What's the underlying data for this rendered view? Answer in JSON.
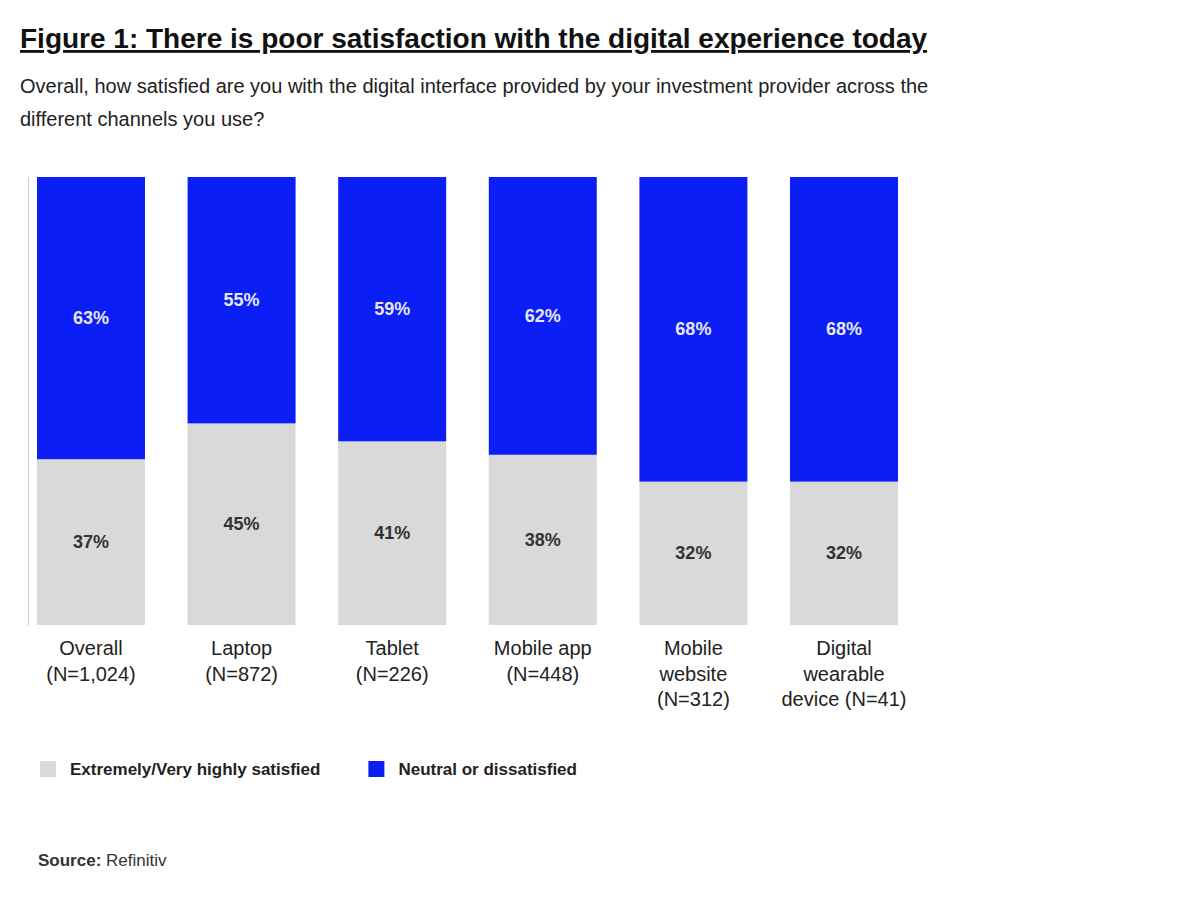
{
  "chart_data": {
    "type": "bar",
    "stacked": true,
    "data_labels": true,
    "tick_labels": "x",
    "title": "Figure 1: There is poor satisfaction with the digital experience today",
    "subtitle": "Overall, how satisfied are you with the digital interface provided by your investment provider across the\ndifferent channels you use?",
    "categories": [
      "Overall\n(N=1,024)",
      "Laptop\n(N=872)",
      "Tablet\n(N=226)",
      "Mobile app\n(N=448)",
      "Mobile\nwebsite\n(N=312)",
      "Digital\nwearable\ndevice (N=41)"
    ],
    "series": [
      {
        "name": "Extremely/Very highly satisfied",
        "color": "#d9d9d9",
        "values": [
          37,
          45,
          41,
          38,
          32,
          32
        ],
        "value_labels": [
          "37%",
          "45%",
          "41%",
          "38%",
          "32%",
          "32%"
        ]
      },
      {
        "name": "Neutral or dissatisfied",
        "color": "#0a1ef5",
        "values": [
          63,
          55,
          59,
          62,
          68,
          68
        ],
        "value_labels": [
          "63%",
          "55%",
          "59%",
          "62%",
          "68%",
          "68%"
        ]
      }
    ],
    "ylim": [
      0,
      100
    ],
    "legend": "bottom",
    "source": "Source: Refinitiv"
  }
}
